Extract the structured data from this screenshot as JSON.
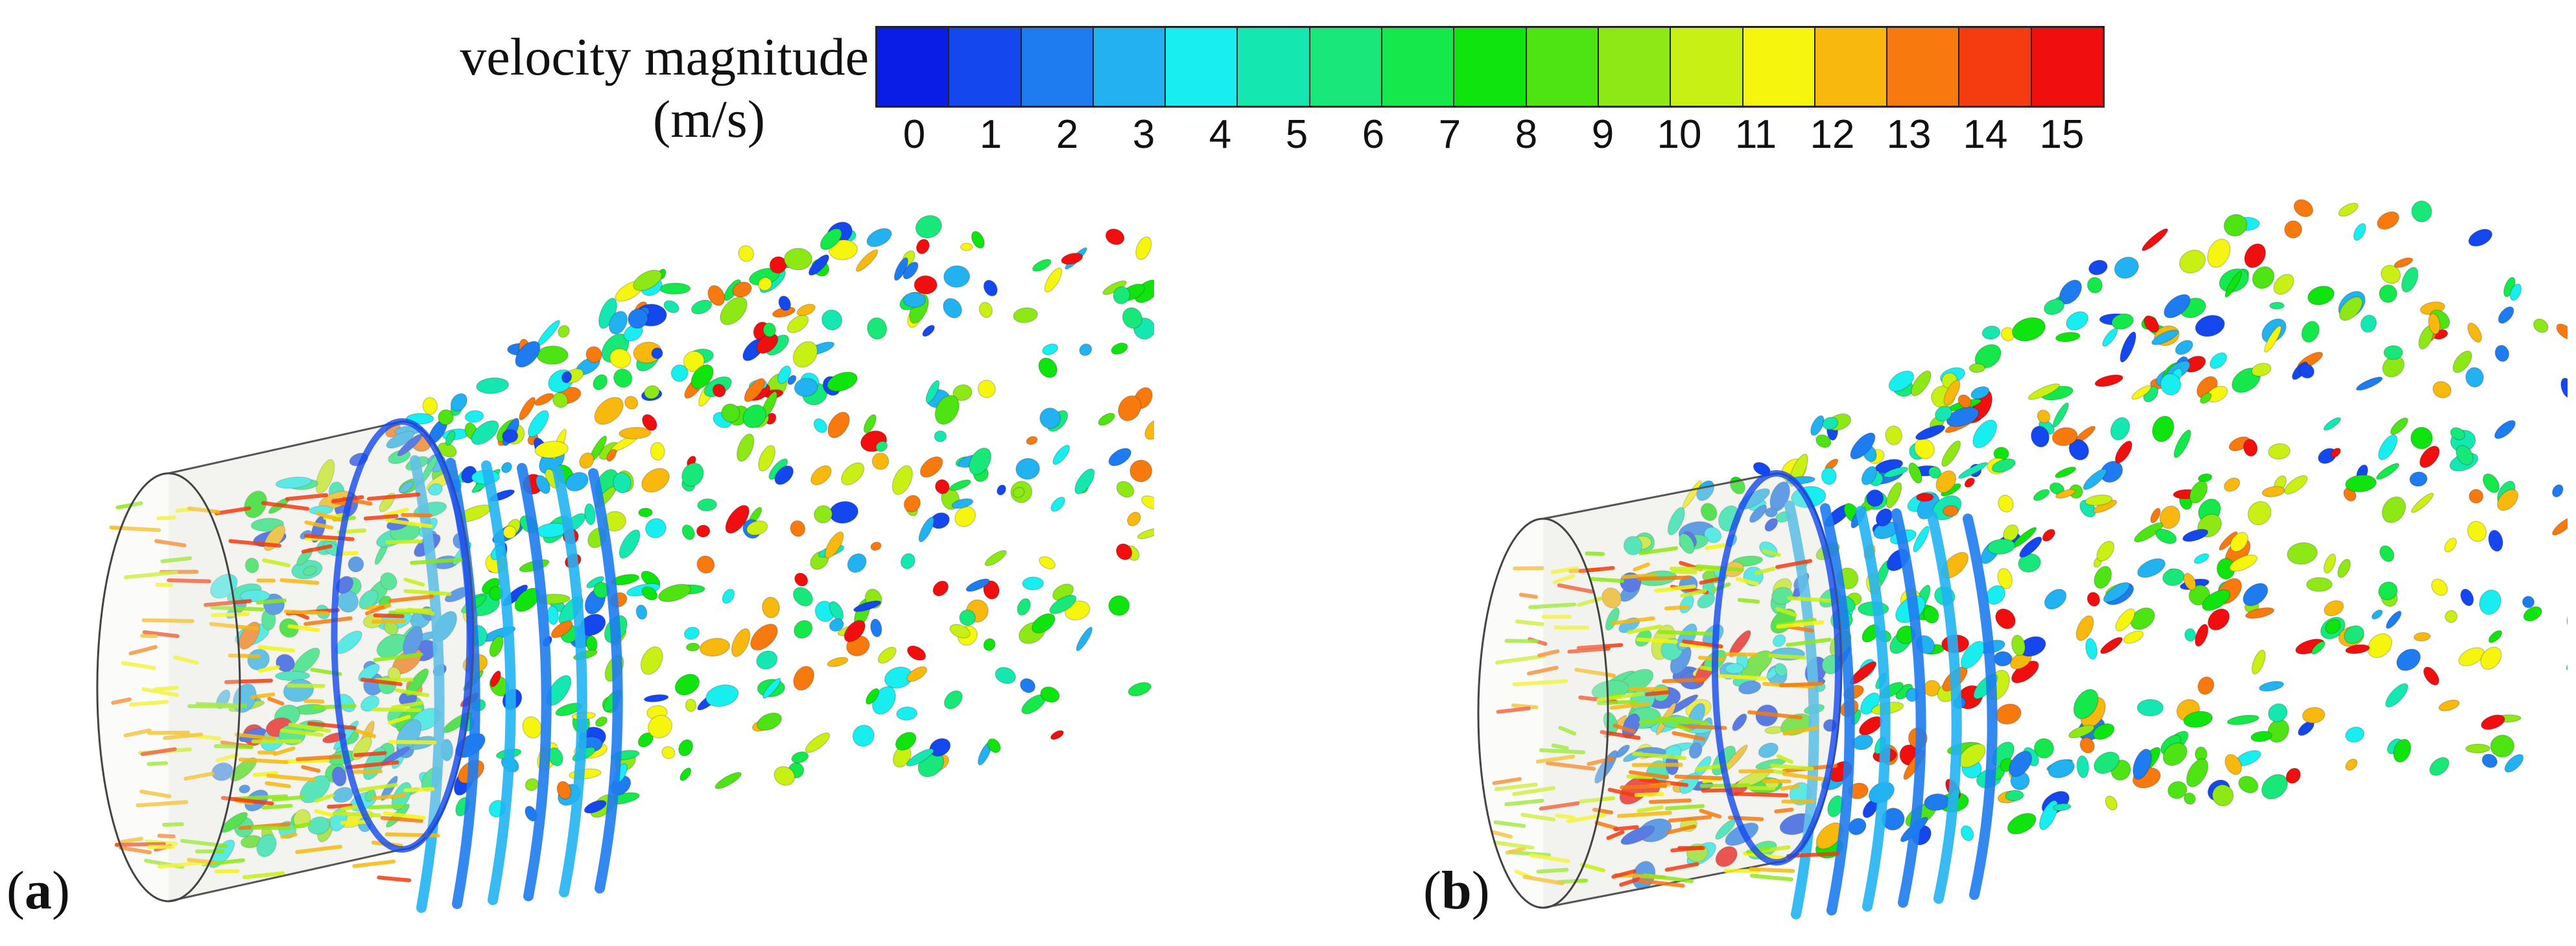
{
  "colorbar": {
    "title_line1": "velocity magnitude",
    "title_line2": "(m/s)",
    "ticks": [
      "0",
      "1",
      "2",
      "3",
      "4",
      "5",
      "6",
      "7",
      "8",
      "9",
      "10",
      "11",
      "12",
      "13",
      "14",
      "15"
    ],
    "colors": [
      "#0a1de6",
      "#1448ee",
      "#1e7cf0",
      "#22b2f2",
      "#18eef0",
      "#14e8b0",
      "#18e87a",
      "#14e84a",
      "#10e40e",
      "#4ee414",
      "#8ee816",
      "#c8f014",
      "#f5f50e",
      "#f8b80e",
      "#f87a0e",
      "#f53c10",
      "#f00e0e"
    ]
  },
  "panels": [
    {
      "id": "a",
      "label_open": "(",
      "label_letter": "a",
      "label_close": ")"
    },
    {
      "id": "b",
      "label_open": "(",
      "label_letter": "b",
      "label_close": ")"
    }
  ],
  "palette": [
    "#1448ee",
    "#1e7cf0",
    "#22b2f2",
    "#18eef0",
    "#14e8b0",
    "#18e87a",
    "#14e84a",
    "#10e40e",
    "#4ee414",
    "#8ee816",
    "#c8f014",
    "#f5f50e",
    "#f8b80e",
    "#f87a0e",
    "#f00e0e"
  ]
}
